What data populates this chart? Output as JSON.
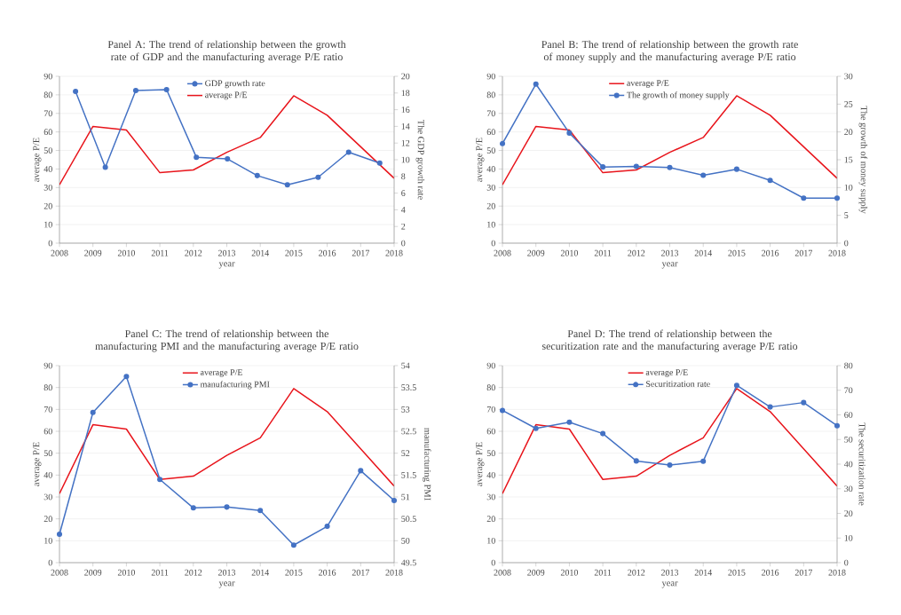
{
  "chart_data": [
    {
      "type": "line",
      "title": "Panel A: The trend of relationship between the growth rate of GDP and the manufacturing average P/E ratio",
      "xlabel": "year",
      "ylabel": "average P/E",
      "y2label": "The GDP growth rate",
      "x": [
        2008,
        2009,
        2010,
        2011,
        2012,
        2013,
        2014,
        2015,
        2016,
        2017,
        2018
      ],
      "xlim": [
        2008,
        2018
      ],
      "xticks": [
        2008,
        2009,
        2010,
        2011,
        2012,
        2013,
        2014,
        2015,
        2016,
        2017,
        2018
      ],
      "ylim": [
        0,
        90
      ],
      "yticks": [
        0,
        10,
        20,
        30,
        40,
        50,
        60,
        70,
        80,
        90
      ],
      "y2lim": [
        0,
        20
      ],
      "y2ticks": [
        0,
        2,
        4,
        6,
        8,
        10,
        12,
        14,
        16,
        18,
        20
      ],
      "grid": "y",
      "legend": "top",
      "series": [
        {
          "name": "GDP growth rate",
          "color": "#4472c4",
          "axis": "y2",
          "marker": "circle",
          "x": [
            2008.48,
            2009.37,
            2010.28,
            2011.2,
            2012.09,
            2013.02,
            2013.91,
            2014.81,
            2015.73,
            2016.64,
            2017.57
          ],
          "values": [
            18.2,
            9.1,
            18.3,
            18.4,
            10.3,
            10.1,
            8.1,
            7.0,
            7.9,
            10.9,
            9.6
          ]
        },
        {
          "name": "average P/E",
          "color": "#e8141b",
          "values": [
            31.5,
            63,
            61,
            38,
            39.5,
            49,
            57,
            79.5,
            69,
            52,
            35
          ]
        }
      ]
    },
    {
      "type": "line",
      "title": "Panel B: The trend of relationship between the growth rate of money supply and the manufacturing average P/E ratio",
      "xlabel": "year",
      "ylabel": "average P/E",
      "y2label": "The growth of money supply",
      "x": [
        2008,
        2009,
        2010,
        2011,
        2012,
        2013,
        2014,
        2015,
        2016,
        2017,
        2018
      ],
      "xlim": [
        2008,
        2018
      ],
      "xticks": [
        2008,
        2009,
        2010,
        2011,
        2012,
        2013,
        2014,
        2015,
        2016,
        2017,
        2018
      ],
      "ylim": [
        0,
        90
      ],
      "yticks": [
        0,
        10,
        20,
        30,
        40,
        50,
        60,
        70,
        80,
        90
      ],
      "y2lim": [
        0,
        30
      ],
      "y2ticks": [
        0,
        5,
        10,
        15,
        20,
        25,
        30
      ],
      "grid": "y",
      "legend": "top",
      "series": [
        {
          "name": "average P/E",
          "color": "#e8141b",
          "values": [
            31.5,
            63,
            61,
            38,
            39.5,
            49,
            57,
            79.5,
            69,
            52,
            35
          ]
        },
        {
          "name": "The growth of money supply",
          "color": "#4472c4",
          "axis": "y2",
          "marker": "circle",
          "values": [
            17.9,
            28.6,
            19.8,
            13.7,
            13.8,
            13.6,
            12.2,
            13.3,
            11.3,
            8.1,
            8.1
          ]
        }
      ]
    },
    {
      "type": "line",
      "title": "Panel C: The trend of relationship between the manufacturing PMI and the manufacturing average P/E ratio",
      "xlabel": "year",
      "ylabel": "average P/E",
      "y2label": "manufacturing PMI",
      "x": [
        2008,
        2009,
        2010,
        2011,
        2012,
        2013,
        2014,
        2015,
        2016,
        2017,
        2018
      ],
      "xlim": [
        2008,
        2018
      ],
      "xticks": [
        2008,
        2009,
        2010,
        2011,
        2012,
        2013,
        2014,
        2015,
        2016,
        2017,
        2018
      ],
      "ylim": [
        0,
        90
      ],
      "yticks": [
        0,
        10,
        20,
        30,
        40,
        50,
        60,
        70,
        80,
        90
      ],
      "y2lim": [
        49.5,
        54
      ],
      "y2ticks": [
        49.5,
        50,
        50.5,
        51,
        51.5,
        52,
        52.5,
        53,
        53.5,
        54
      ],
      "grid": "y",
      "legend": "top",
      "series": [
        {
          "name": "average P/E",
          "color": "#e8141b",
          "values": [
            31.5,
            63,
            61,
            38,
            39.5,
            49,
            57,
            79.5,
            69,
            52,
            35
          ]
        },
        {
          "name": "manufacturing PMI",
          "color": "#4472c4",
          "axis": "y2",
          "marker": "circle",
          "values": [
            50.15,
            52.93,
            53.75,
            51.4,
            50.75,
            50.77,
            50.69,
            49.9,
            50.33,
            51.6,
            50.92
          ]
        }
      ]
    },
    {
      "type": "line",
      "title": "Panel D: The trend of relationship between the securitization rate and the manufacturing average P/E ratio",
      "xlabel": "year",
      "ylabel": "average P/E",
      "y2label": "The securitization rate",
      "x": [
        2008,
        2009,
        2010,
        2011,
        2012,
        2013,
        2014,
        2015,
        2016,
        2017,
        2018
      ],
      "xlim": [
        2008,
        2018
      ],
      "xticks": [
        2008,
        2009,
        2010,
        2011,
        2012,
        2013,
        2014,
        2015,
        2016,
        2017,
        2018
      ],
      "ylim": [
        0,
        90
      ],
      "yticks": [
        0,
        10,
        20,
        30,
        40,
        50,
        60,
        70,
        80,
        90
      ],
      "y2lim": [
        0,
        80
      ],
      "y2ticks": [
        0,
        10,
        20,
        30,
        40,
        50,
        60,
        70,
        80
      ],
      "grid": "y",
      "legend": "top",
      "series": [
        {
          "name": "average P/E",
          "color": "#e8141b",
          "values": [
            31.5,
            63,
            61,
            38,
            39.5,
            49,
            57,
            79.5,
            69,
            52,
            35
          ]
        },
        {
          "name": "Securitization rate",
          "color": "#4472c4",
          "axis": "y2",
          "marker": "circle",
          "values": [
            61.8,
            54.5,
            57,
            52.4,
            41.3,
            39.6,
            41.2,
            72,
            63.2,
            65,
            55.6
          ]
        }
      ]
    }
  ]
}
